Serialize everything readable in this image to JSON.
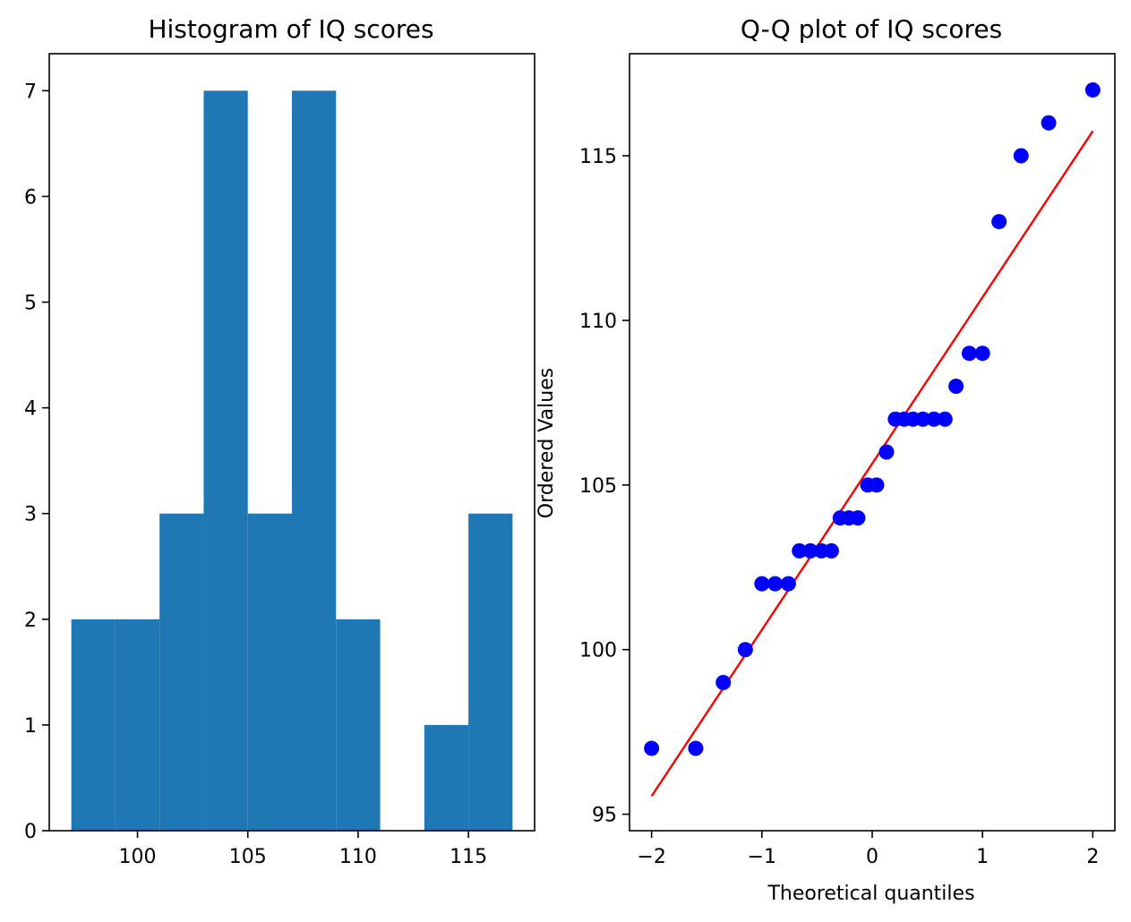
{
  "chart_data": [
    {
      "type": "bar",
      "title": "Histogram of IQ scores",
      "xlabel": "",
      "ylabel": "",
      "bin_edges": [
        97,
        99,
        101,
        103,
        105,
        107,
        109,
        111,
        113,
        115,
        117
      ],
      "counts": [
        2,
        2,
        3,
        7,
        3,
        7,
        2,
        0,
        1,
        3
      ],
      "color": "#1f77b4",
      "xlim": [
        96,
        118
      ],
      "ylim": [
        0,
        7.35
      ],
      "xticks": [
        100,
        105,
        110,
        115
      ],
      "xtick_labels": [
        "100",
        "105",
        "110",
        "115"
      ],
      "yticks": [
        0,
        1,
        2,
        3,
        4,
        5,
        6,
        7
      ],
      "ytick_labels": [
        "0",
        "1",
        "2",
        "3",
        "4",
        "5",
        "6",
        "7"
      ],
      "grid": false
    },
    {
      "type": "scatter",
      "title": "Q-Q plot of IQ scores",
      "xlabel": "Theoretical quantiles",
      "ylabel": "Ordered Values",
      "points": {
        "x": [
          -2.0,
          -1.6,
          -1.35,
          -1.15,
          -1.0,
          -0.88,
          -0.76,
          -0.66,
          -0.56,
          -0.46,
          -0.37,
          -0.29,
          -0.21,
          -0.13,
          -0.04,
          0.04,
          0.13,
          0.21,
          0.29,
          0.37,
          0.46,
          0.56,
          0.66,
          0.76,
          0.88,
          1.0,
          1.15,
          1.35,
          1.6,
          2.0
        ],
        "y": [
          97,
          97,
          99,
          100,
          102,
          102,
          102,
          103,
          103,
          103,
          103,
          104,
          104,
          104,
          105,
          105,
          106,
          107,
          107,
          107,
          107,
          107,
          107,
          108,
          109,
          109,
          113,
          115,
          116,
          117
        ]
      },
      "fit_line": {
        "x": [
          -2.0,
          2.0
        ],
        "y": [
          95.55,
          115.75
        ]
      },
      "point_color": "#0000ff",
      "line_color": "#ff0000",
      "xlim": [
        -2.2,
        2.2
      ],
      "ylim": [
        94.5,
        118.1
      ],
      "xticks": [
        -2,
        -1,
        0,
        1,
        2
      ],
      "xtick_labels": [
        "−2",
        "−1",
        "0",
        "1",
        "2"
      ],
      "yticks": [
        95,
        100,
        105,
        110,
        115
      ],
      "ytick_labels": [
        "95",
        "100",
        "105",
        "110",
        "115"
      ],
      "grid": false
    }
  ]
}
